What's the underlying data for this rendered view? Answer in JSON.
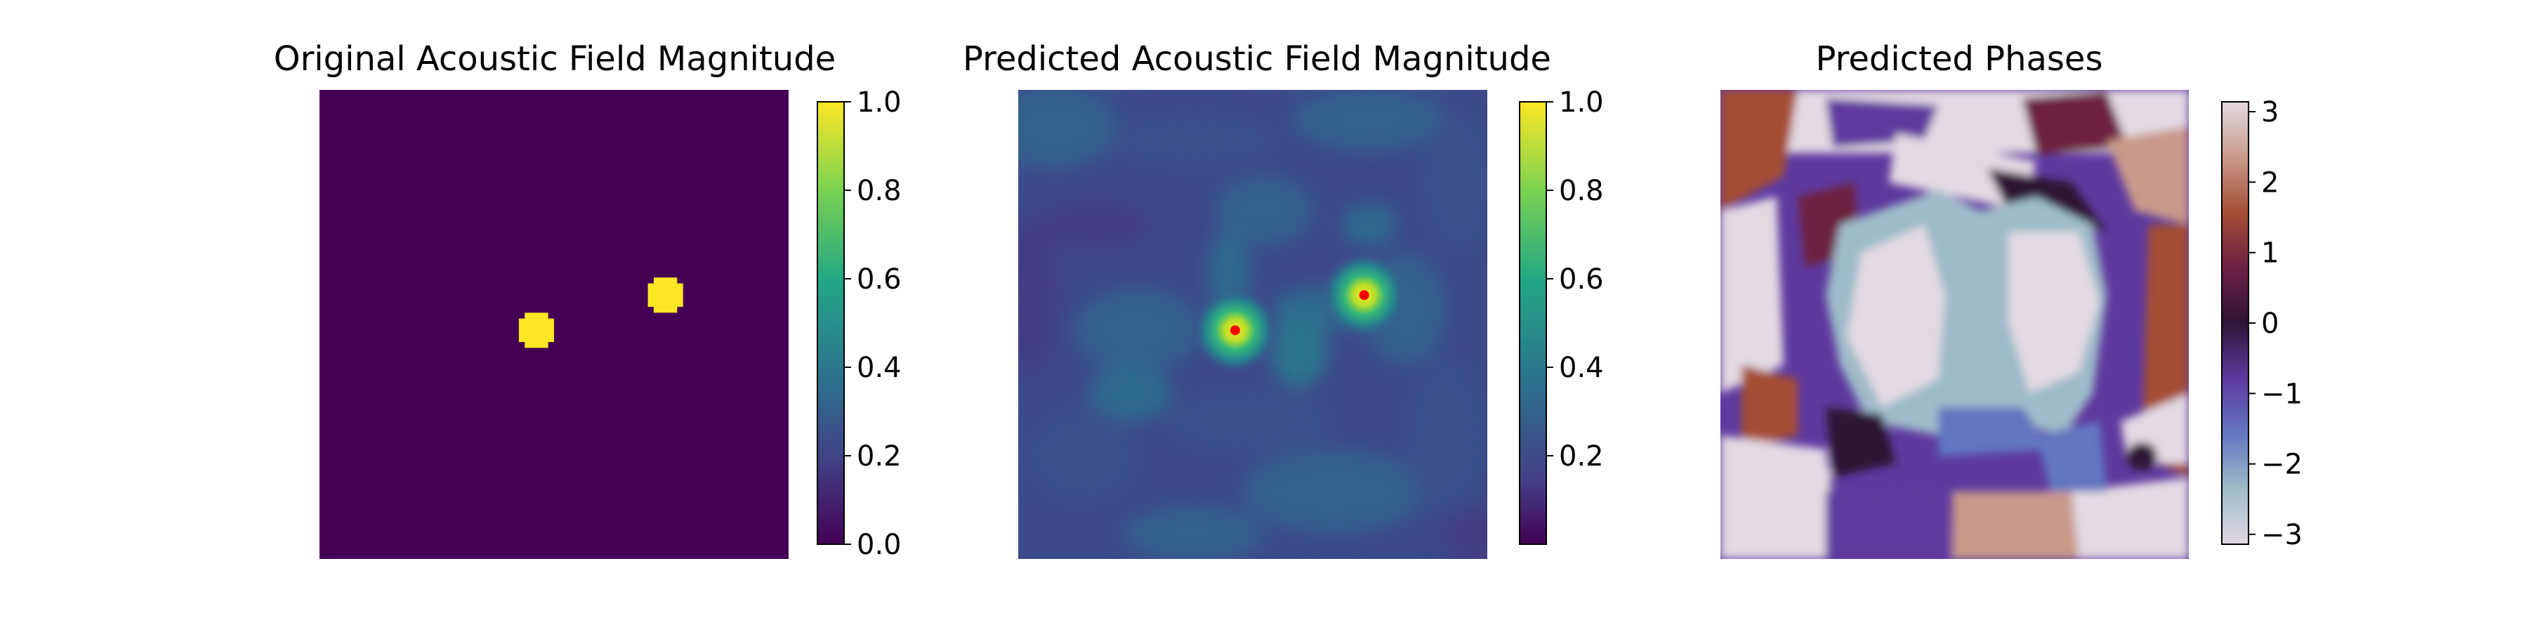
{
  "chart_data": [
    {
      "type": "heatmap",
      "title": "Original Acoustic Field Magnitude",
      "colormap": "viridis",
      "clim": [
        0.0,
        1.0
      ],
      "colorbar_ticks": [
        "0.0",
        "0.2",
        "0.4",
        "0.6",
        "0.8",
        "1.0"
      ],
      "colorbar_tick_values": [
        0.0,
        0.2,
        0.4,
        0.6,
        0.8,
        1.0
      ],
      "background_value": 0.0,
      "grid_size": 40,
      "focal_points": [
        {
          "col": 18,
          "row": 20,
          "value": 1.0
        },
        {
          "col": 29,
          "row": 17,
          "value": 1.0
        }
      ]
    },
    {
      "type": "heatmap",
      "title": "Predicted Acoustic Field Magnitude",
      "colormap": "viridis",
      "clim": [
        0.0,
        1.0
      ],
      "colorbar_ticks": [
        "0.2",
        "0.4",
        "0.6",
        "0.8",
        "1.0"
      ],
      "colorbar_tick_values": [
        0.2,
        0.4,
        0.6,
        0.8,
        1.0
      ],
      "background_value": 0.12,
      "focal_points": [
        {
          "col": 18,
          "row": 20,
          "value": 1.0,
          "marker_color": "#ff0000"
        },
        {
          "col": 29,
          "row": 17,
          "value": 1.0,
          "marker_color": "#ff0000"
        }
      ]
    },
    {
      "type": "heatmap",
      "title": "Predicted Phases",
      "colormap": "twilight",
      "clim": [
        -3.14,
        3.14
      ],
      "colorbar_ticks": [
        "3",
        "2",
        "1",
        "0",
        "−1",
        "−2",
        "−3"
      ],
      "colorbar_tick_values": [
        3,
        2,
        1,
        0,
        -1,
        -2,
        -3
      ]
    }
  ],
  "colors": {
    "viridis": [
      "#440154",
      "#414487",
      "#2a788e",
      "#22a884",
      "#7ad151",
      "#fde725"
    ],
    "twilight": [
      "#e2d9e2",
      "#9ebbc9",
      "#6276c1",
      "#5e3a9f",
      "#2f1436",
      "#6d2043",
      "#a54e35",
      "#c99a8a",
      "#e2d9e2"
    ],
    "marker": "#ff0000"
  }
}
